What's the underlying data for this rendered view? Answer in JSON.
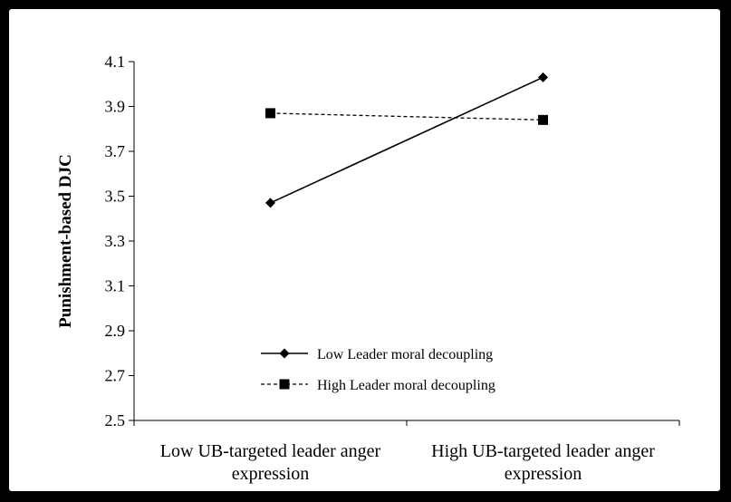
{
  "chart_data": {
    "type": "line",
    "title": "",
    "ylabel": "Punishment-based DJC",
    "xlabel": "",
    "categories": [
      "Low UB-targeted leader anger expression",
      "High UB-targeted leader anger expression"
    ],
    "category_lines": [
      [
        "Low UB-targeted leader anger",
        "expression"
      ],
      [
        "High UB-targeted leader anger",
        "expression"
      ]
    ],
    "ylim": [
      2.5,
      4.1
    ],
    "yticks": [
      "2.5",
      "2.7",
      "2.9",
      "3.1",
      "3.3",
      "3.5",
      "3.7",
      "3.9",
      "4.1"
    ],
    "grid": false,
    "legend_position": "bottom-left",
    "series": [
      {
        "name": "Low Leader moral decoupling",
        "values": [
          3.47,
          4.03
        ],
        "marker": "diamond",
        "line_style": "solid",
        "color": "#000000"
      },
      {
        "name": "High Leader moral decoupling",
        "values": [
          3.87,
          3.84
        ],
        "marker": "square",
        "line_style": "dashed",
        "color": "#000000"
      }
    ]
  }
}
